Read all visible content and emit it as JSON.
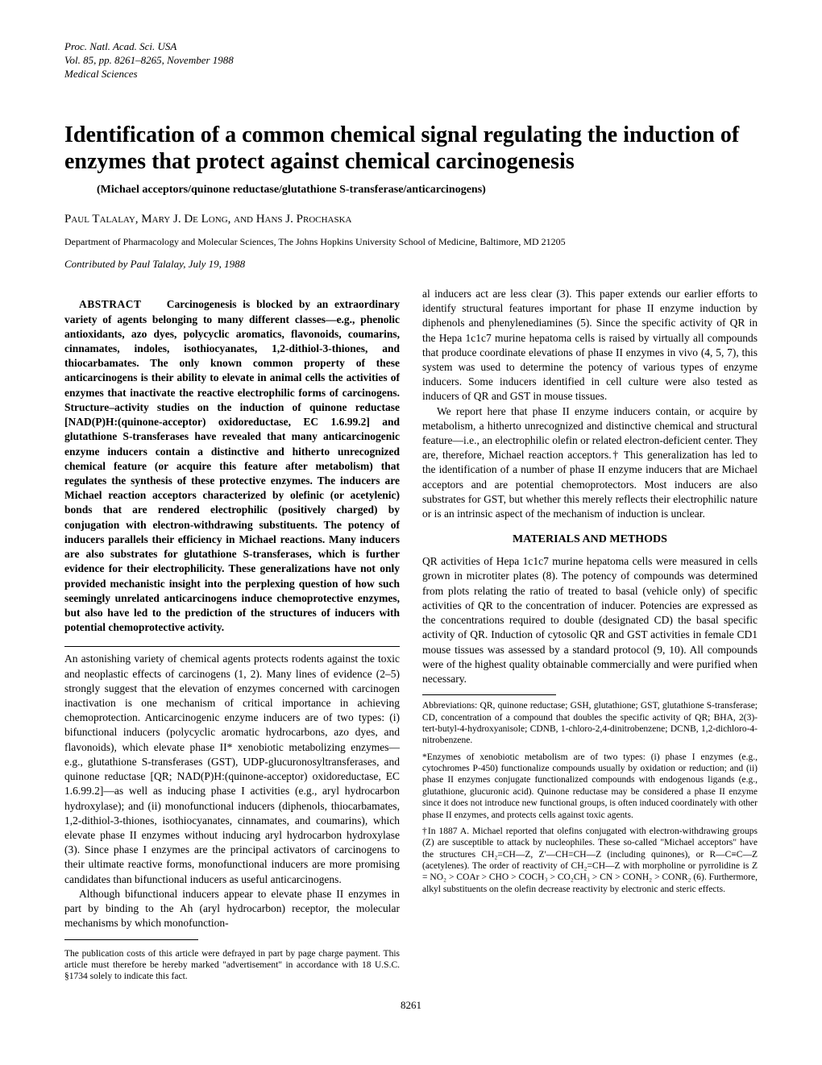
{
  "meta": {
    "journal_line1": "Proc. Natl. Acad. Sci. USA",
    "journal_line2": "Vol. 85, pp. 8261–8265, November 1988",
    "journal_line3": "Medical Sciences"
  },
  "title": "Identification of a common chemical signal regulating the induction of enzymes that protect against chemical carcinogenesis",
  "subtitle": "(Michael acceptors/quinone reductase/glutathione S-transferase/anticarcinogens)",
  "authors": "Paul Talalay, Mary J. De Long, and Hans J. Prochaska",
  "affiliation": "Department of Pharmacology and Molecular Sciences, The Johns Hopkins University School of Medicine, Baltimore, MD 21205",
  "contributed": "Contributed by Paul Talalay, July 19, 1988",
  "abstract_label": "ABSTRACT",
  "abstract": "Carcinogenesis is blocked by an extraordinary variety of agents belonging to many different classes—e.g., phenolic antioxidants, azo dyes, polycyclic aromatics, flavonoids, coumarins, cinnamates, indoles, isothiocyanates, 1,2-dithiol-3-thiones, and thiocarbamates. The only known common property of these anticarcinogens is their ability to elevate in animal cells the activities of enzymes that inactivate the reactive electrophilic forms of carcinogens. Structure–activity studies on the induction of quinone reductase [NAD(P)H:(quinone-acceptor) oxidoreductase, EC 1.6.99.2] and glutathione S-transferases have revealed that many anticarcinogenic enzyme inducers contain a distinctive and hitherto unrecognized chemical feature (or acquire this feature after metabolism) that regulates the synthesis of these protective enzymes. The inducers are Michael reaction acceptors characterized by olefinic (or acetylenic) bonds that are rendered electrophilic (positively charged) by conjugation with electron-withdrawing substituents. The potency of inducers parallels their efficiency in Michael reactions. Many inducers are also substrates for glutathione S-transferases, which is further evidence for their electrophilicity. These generalizations have not only provided mechanistic insight into the perplexing question of how such seemingly unrelated anticarcinogens induce chemoprotective enzymes, but also have led to the prediction of the structures of inducers with potential chemoprotective activity.",
  "intro_p1": "An astonishing variety of chemical agents protects rodents against the toxic and neoplastic effects of carcinogens (1, 2). Many lines of evidence (2–5) strongly suggest that the elevation of enzymes concerned with carcinogen inactivation is one mechanism of critical importance in achieving chemoprotection. Anticarcinogenic enzyme inducers are of two types: (i) bifunctional inducers (polycyclic aromatic hydrocarbons, azo dyes, and flavonoids), which elevate phase II* xenobiotic metabolizing enzymes—e.g., glutathione S-transferases (GST), UDP-glucuronosyltransferases, and quinone reductase [QR; NAD(P)H:(quinone-acceptor) oxidoreductase, EC 1.6.99.2]—as well as inducing phase I activities (e.g., aryl hydrocarbon hydroxylase); and (ii) monofunctional inducers (diphenols, thiocarbamates, 1,2-dithiol-3-thiones, isothiocyanates, cinnamates, and coumarins), which elevate phase II enzymes without inducing aryl hydrocarbon hydroxylase (3). Since phase I enzymes are the principal activators of carcinogens to their ultimate reactive forms, monofunctional inducers are more promising candidates than bifunctional inducers as useful anticarcinogens.",
  "intro_p2": "Although bifunctional inducers appear to elevate phase II enzymes in part by binding to the Ah (aryl hydrocarbon) receptor, the molecular mechanisms by which monofunction-",
  "col2_p1": "al inducers act are less clear (3). This paper extends our earlier efforts to identify structural features important for phase II enzyme induction by diphenols and phenylenediamines (5). Since the specific activity of QR in the Hepa 1c1c7 murine hepatoma cells is raised by virtually all compounds that produce coordinate elevations of phase II enzymes in vivo (4, 5, 7), this system was used to determine the potency of various types of enzyme inducers. Some inducers identified in cell culture were also tested as inducers of QR and GST in mouse tissues.",
  "col2_p2": "We report here that phase II enzyme inducers contain, or acquire by metabolism, a hitherto unrecognized and distinctive chemical and structural feature—i.e., an electrophilic olefin or related electron-deficient center. They are, therefore, Michael reaction acceptors.† This generalization has led to the identification of a number of phase II enzyme inducers that are Michael acceptors and are potential chemoprotectors. Most inducers are also substrates for GST, but whether this merely reflects their electrophilic nature or is an intrinsic aspect of the mechanism of induction is unclear.",
  "methods_heading": "MATERIALS AND METHODS",
  "methods_p1": "QR activities of Hepa 1c1c7 murine hepatoma cells were measured in cells grown in microtiter plates (8). The potency of compounds was determined from plots relating the ratio of treated to basal (vehicle only) of specific activities of QR to the concentration of inducer. Potencies are expressed as the concentrations required to double (designated CD) the basal specific activity of QR. Induction of cytosolic QR and GST activities in female CD1 mouse tissues was assessed by a standard protocol (9, 10). All compounds were of the highest quality obtainable commercially and were purified when necessary.",
  "abbrev": "Abbreviations: QR, quinone reductase; GSH, glutathione; GST, glutathione S-transferase; CD, concentration of a compound that doubles the specific activity of QR; BHA, 2(3)-tert-butyl-4-hydroxyanisole; CDNB, 1-chloro-2,4-dinitrobenzene; DCNB, 1,2-dichloro-4-nitrobenzene.",
  "footnote_star": "*Enzymes of xenobiotic metabolism are of two types: (i) phase I enzymes (e.g., cytochromes P-450) functionalize compounds usually by oxidation or reduction; and (ii) phase II enzymes conjugate functionalized compounds with endogenous ligands (e.g., glutathione, glucuronic acid). Quinone reductase may be considered a phase II enzyme since it does not introduce new functional groups, is often induced coordinately with other phase II enzymes, and protects cells against toxic agents.",
  "footnote_dagger": "†In 1887 A. Michael reported that olefins conjugated with electron-withdrawing groups (Z) are susceptible to attack by nucleophiles. These so-called \"Michael acceptors\" have the structures CH₂=CH—Z, Z'—CH=CH—Z (including quinones), or R—C≡C—Z (acetylenes). The order of reactivity of CH₂=CH—Z with morpholine or pyrrolidine is Z = NO₂ > COAr > CHO > COCH₃ > CO₂CH₃ > CN > CONH₂ > CONR₂ (6). Furthermore, alkyl substituents on the olefin decrease reactivity by electronic and steric effects.",
  "pub_cost": "The publication costs of this article were defrayed in part by page charge payment. This article must therefore be hereby marked \"advertisement\" in accordance with 18 U.S.C. §1734 solely to indicate this fact.",
  "page_number": "8261"
}
